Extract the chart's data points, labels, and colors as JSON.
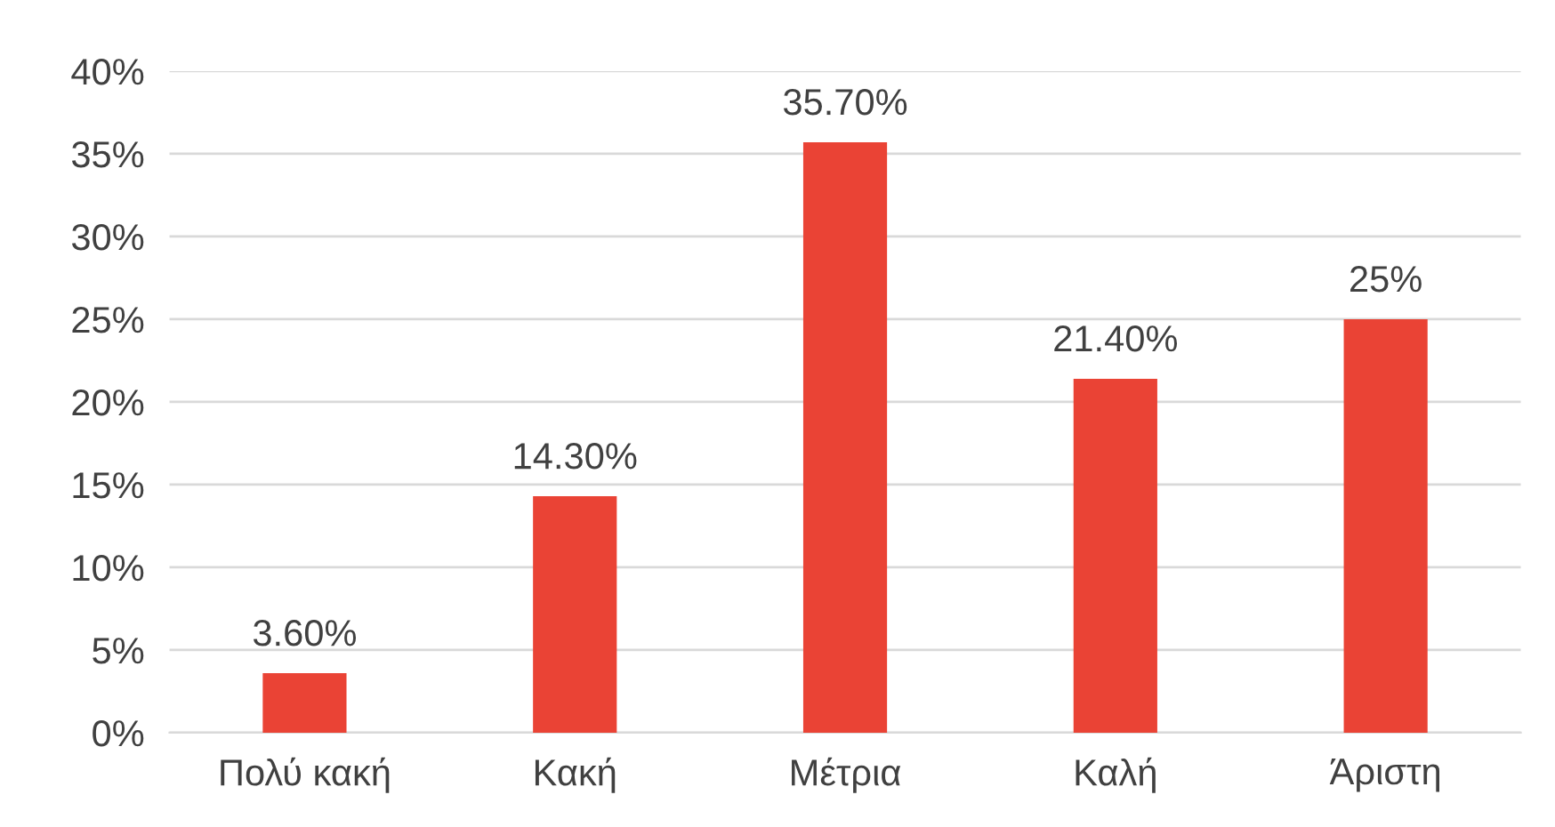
{
  "chart_data": {
    "type": "bar",
    "categories": [
      "Πολύ κακή",
      "Κακή",
      "Μέτρια",
      "Καλή",
      "Άριστη"
    ],
    "values": [
      3.6,
      14.3,
      35.7,
      21.4,
      25
    ],
    "value_labels": [
      "3.60%",
      "14.30%",
      "35.70%",
      "21.40%",
      "25%"
    ],
    "color": "#ea4335",
    "ylim": [
      0,
      40
    ],
    "yticks": [
      {
        "value": 0,
        "label": "0%"
      },
      {
        "value": 5,
        "label": "5%"
      },
      {
        "value": 10,
        "label": "10%"
      },
      {
        "value": 15,
        "label": "15%"
      },
      {
        "value": 20,
        "label": "20%"
      },
      {
        "value": 25,
        "label": "25%"
      },
      {
        "value": 30,
        "label": "30%"
      },
      {
        "value": 35,
        "label": "35%"
      },
      {
        "value": 40,
        "label": "40%"
      }
    ],
    "grid": "y",
    "legend": false
  }
}
